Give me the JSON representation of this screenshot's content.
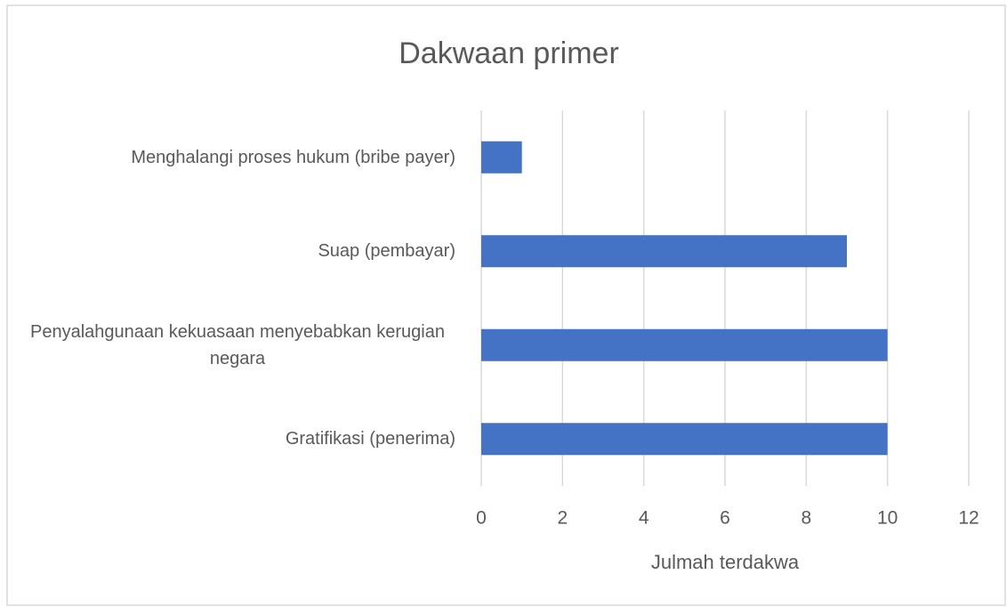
{
  "chart_data": {
    "type": "bar",
    "orientation": "horizontal",
    "title": "Dakwaan primer",
    "x_label": "Julmah terdakwa",
    "categories": [
      "Menghalangi proses hukum (bribe payer)",
      "Suap (pembayar)",
      "Penyalahgunaan kekuasaan menyebabkan kerugian negara",
      "Gratifikasi (penerima)"
    ],
    "values": [
      1,
      9,
      10,
      10
    ],
    "color": "#4472c4",
    "xlim": [
      0,
      12
    ],
    "xticks": [
      0,
      2,
      4,
      6,
      8,
      10,
      12
    ],
    "grid": true
  }
}
